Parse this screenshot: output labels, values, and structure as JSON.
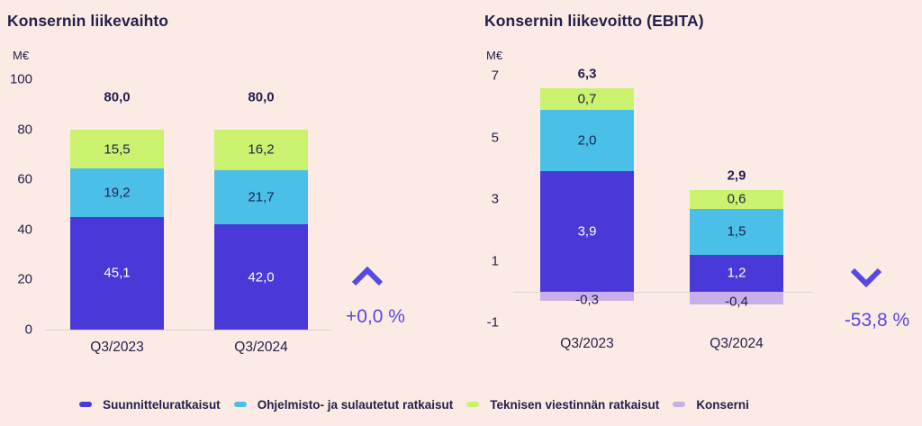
{
  "page": {
    "background": "#fcebe4",
    "text_color": "#24204e",
    "accent_color": "#5848e2",
    "axis_line_color": "#ddd3cd"
  },
  "chart_data": [
    {
      "type": "bar",
      "stacked": true,
      "title": "Konsernin liikevaihto",
      "ylabel": "M€",
      "categories": [
        "Q3/2023",
        "Q3/2024"
      ],
      "ylim": [
        0,
        100
      ],
      "yticks": [
        0,
        20,
        40,
        60,
        80,
        100
      ],
      "grid": false,
      "legend_position": "bottom",
      "series": [
        {
          "name": "Suunnitteluratkaisut",
          "color": "#4939d9",
          "label_color": "#ffffff",
          "values": [
            45.1,
            42.0
          ],
          "labels": [
            "45,1",
            "42,0"
          ]
        },
        {
          "name": "Ohjelmisto- ja sulautetut ratkaisut",
          "color": "#4abfe8",
          "label_color": "#24204e",
          "values": [
            19.2,
            21.7
          ],
          "labels": [
            "19,2",
            "21,7"
          ]
        },
        {
          "name": "Teknisen viestinnän ratkaisut",
          "color": "#caf26e",
          "label_color": "#24204e",
          "values": [
            15.5,
            16.2
          ],
          "labels": [
            "15,5",
            "16,2"
          ]
        }
      ],
      "totals": [
        "80,0",
        "80,0"
      ],
      "change": {
        "direction": "up",
        "label": "+0,0 %"
      }
    },
    {
      "type": "bar",
      "stacked": true,
      "title": "Konsernin liikevoitto (EBITA)",
      "ylabel": "M€",
      "categories": [
        "Q3/2023",
        "Q3/2024"
      ],
      "ylim": [
        -1,
        7
      ],
      "yticks": [
        -1,
        1,
        3,
        5,
        7
      ],
      "grid": false,
      "legend_position": "bottom",
      "series": [
        {
          "name": "Suunnitteluratkaisut",
          "color": "#4939d9",
          "label_color": "#ffffff",
          "values": [
            3.9,
            1.2
          ],
          "labels": [
            "3,9",
            "1,2"
          ]
        },
        {
          "name": "Ohjelmisto- ja sulautetut ratkaisut",
          "color": "#4abfe8",
          "label_color": "#24204e",
          "values": [
            2.0,
            1.5
          ],
          "labels": [
            "2,0",
            "1,5"
          ]
        },
        {
          "name": "Teknisen viestinnän ratkaisut",
          "color": "#caf26e",
          "label_color": "#24204e",
          "values": [
            0.7,
            0.6
          ],
          "labels": [
            "0,7",
            "0,6"
          ]
        },
        {
          "name": "Konserni",
          "color": "#c9afe9",
          "label_color": "#24204e",
          "values": [
            -0.3,
            -0.4
          ],
          "labels": [
            "-0,3",
            "-0,4"
          ]
        }
      ],
      "totals": [
        "6,3",
        "2,9"
      ],
      "change": {
        "direction": "down",
        "label": "-53,8 %"
      }
    }
  ],
  "legend": {
    "items": [
      {
        "label": "Suunnitteluratkaisut",
        "color": "#4939d9"
      },
      {
        "label": "Ohjelmisto- ja sulautetut ratkaisut",
        "color": "#4abfe8"
      },
      {
        "label": "Teknisen viestinnän ratkaisut",
        "color": "#caf26e"
      },
      {
        "label": "Konserni",
        "color": "#c9afe9"
      }
    ]
  }
}
